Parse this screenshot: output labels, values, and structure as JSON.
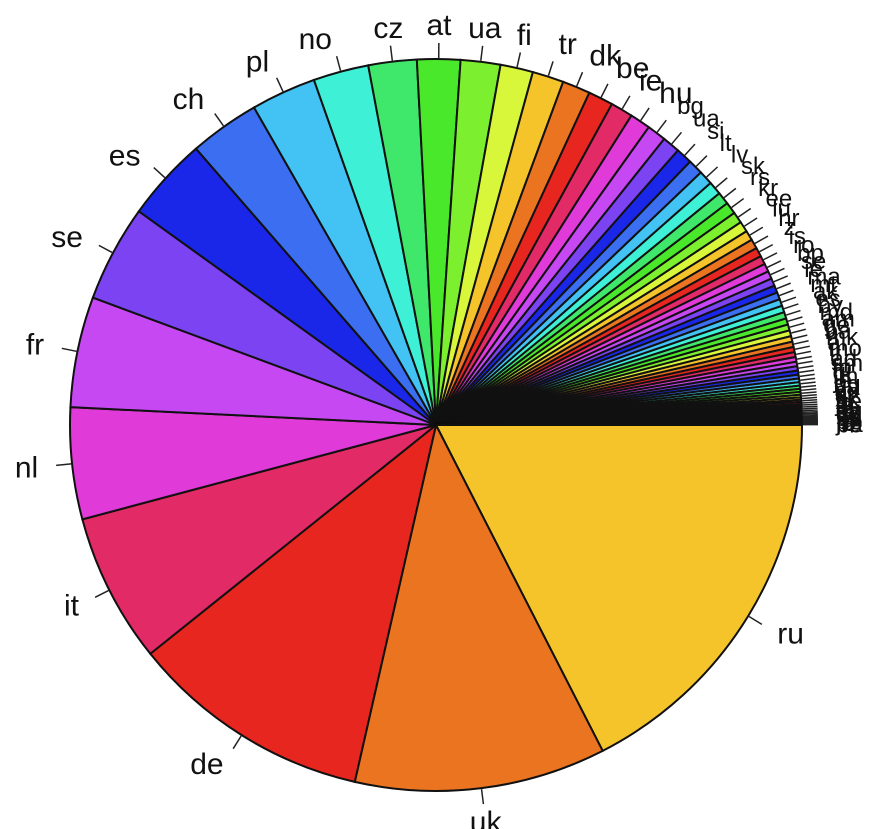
{
  "chart_data": {
    "type": "pie",
    "title": "",
    "slices": [
      {
        "label": "ru",
        "value": 18.44,
        "color": "#f4c42a"
      },
      {
        "label": "uk",
        "value": 11.7,
        "color": "#ea7420"
      },
      {
        "label": "de",
        "value": 11.28,
        "color": "#e6261f"
      },
      {
        "label": "it",
        "value": 6.96,
        "color": "#e22a67"
      },
      {
        "label": "nl",
        "value": 5.2,
        "color": "#e03ad8"
      },
      {
        "label": "fr",
        "value": 5.15,
        "color": "#c648f3"
      },
      {
        "label": "se",
        "value": 4.5,
        "color": "#7c43f2"
      },
      {
        "label": "es",
        "value": 3.9,
        "color": "#1a27e8"
      },
      {
        "label": "ch",
        "value": 3.27,
        "color": "#3b6ef0"
      },
      {
        "label": "pl",
        "value": 3.03,
        "color": "#42c3f4"
      },
      {
        "label": "no",
        "value": 2.58,
        "color": "#3ef0d5"
      },
      {
        "label": "cz",
        "value": 2.25,
        "color": "#3fe86a"
      },
      {
        "label": "at",
        "value": 2.01,
        "color": "#4ae82a"
      },
      {
        "label": "ua",
        "value": 1.85,
        "color": "#7cf02e"
      },
      {
        "label": "fi",
        "value": 1.52,
        "color": "#d9f73a"
      },
      {
        "label": "tr",
        "value": 1.46,
        "color": "#f4c42a"
      },
      {
        "label": "dk",
        "value": 1.3,
        "color": "#ea7420"
      },
      {
        "label": "be",
        "value": 1.16,
        "color": "#e6261f"
      },
      {
        "label": "ie",
        "value": 1.04,
        "color": "#e22a67"
      },
      {
        "label": "hu",
        "value": 0.96,
        "color": "#e03ad8"
      },
      {
        "label": "bg",
        "value": 0.89,
        "color": "#c648f3"
      },
      {
        "label": "ua",
        "value": 0.82,
        "color": "#7c43f2"
      },
      {
        "label": "si",
        "value": 0.76,
        "color": "#1a27e8"
      },
      {
        "label": "lt",
        "value": 0.7,
        "color": "#3b6ef0"
      },
      {
        "label": "lv",
        "value": 0.66,
        "color": "#42c3f4"
      },
      {
        "label": "sk",
        "value": 0.62,
        "color": "#3ef0d5"
      },
      {
        "label": "rs",
        "value": 0.58,
        "color": "#3fe86a"
      },
      {
        "label": "kr",
        "value": 0.55,
        "color": "#4ae82a"
      },
      {
        "label": "ee",
        "value": 0.52,
        "color": "#7cf02e"
      },
      {
        "label": "lu",
        "value": 0.49,
        "color": "#d9f73a"
      },
      {
        "label": "hr",
        "value": 0.46,
        "color": "#f4c42a"
      },
      {
        "label": "z",
        "value": 0.44,
        "color": "#ea7420"
      },
      {
        "label": "is",
        "value": 0.42,
        "color": "#e6261f"
      },
      {
        "label": "ro",
        "value": 0.4,
        "color": "#e22a67"
      },
      {
        "label": "bp",
        "value": 0.38,
        "color": "#e03ad8"
      },
      {
        "label": "se",
        "value": 0.36,
        "color": "#c648f3"
      },
      {
        "label": "ie",
        "value": 0.35,
        "color": "#7c43f2"
      },
      {
        "label": "ma",
        "value": 0.34,
        "color": "#1a27e8"
      },
      {
        "label": "mt",
        "value": 0.33,
        "color": "#3b6ef0"
      },
      {
        "label": "ak",
        "value": 0.32,
        "color": "#42c3f4"
      },
      {
        "label": "es",
        "value": 0.31,
        "color": "#3ef0d5"
      },
      {
        "label": "by",
        "value": 0.3,
        "color": "#3fe86a"
      },
      {
        "label": "md",
        "value": 0.29,
        "color": "#4ae82a"
      },
      {
        "label": "am",
        "value": 0.28,
        "color": "#7cf02e"
      },
      {
        "label": "ge",
        "value": 0.27,
        "color": "#d9f73a"
      },
      {
        "label": "ba",
        "value": 0.26,
        "color": "#f4c42a"
      },
      {
        "label": "mk",
        "value": 0.25,
        "color": "#ea7420"
      },
      {
        "label": "al",
        "value": 0.24,
        "color": "#e6261f"
      },
      {
        "label": "mo",
        "value": 0.23,
        "color": "#e22a67"
      },
      {
        "label": "li",
        "value": 0.22,
        "color": "#e03ad8"
      },
      {
        "label": "ad",
        "value": 0.21,
        "color": "#c648f3"
      },
      {
        "label": "sm",
        "value": 0.2,
        "color": "#7c43f2"
      },
      {
        "label": "fo",
        "value": 0.19,
        "color": "#1a27e8"
      },
      {
        "label": "gi",
        "value": 0.18,
        "color": "#3b6ef0"
      },
      {
        "label": "im",
        "value": 0.17,
        "color": "#42c3f4"
      },
      {
        "label": "je",
        "value": 0.16,
        "color": "#3ef0d5"
      },
      {
        "label": "gg",
        "value": 0.15,
        "color": "#3fe86a"
      },
      {
        "label": "va",
        "value": 0.14,
        "color": "#4ae82a"
      },
      {
        "label": "ax",
        "value": 0.13,
        "color": "#7cf02e"
      },
      {
        "label": "sj",
        "value": 0.12,
        "color": "#d9f73a"
      },
      {
        "label": "ct",
        "value": 0.11,
        "color": "#f4c42a"
      },
      {
        "label": "xk",
        "value": 0.1,
        "color": "#ea7420"
      },
      {
        "label": "ne",
        "value": 0.1,
        "color": "#e6261f"
      },
      {
        "label": "jo",
        "value": 0.09,
        "color": "#e22a67"
      },
      {
        "label": "le",
        "value": 0.09,
        "color": "#e03ad8"
      },
      {
        "label": "il",
        "value": 0.08,
        "color": "#c648f3"
      },
      {
        "label": "cy",
        "value": 0.08,
        "color": "#7c43f2"
      },
      {
        "label": "eg",
        "value": 0.07,
        "color": "#1a27e8"
      },
      {
        "label": "tn",
        "value": 0.07,
        "color": "#3b6ef0"
      },
      {
        "label": "dz",
        "value": 0.06,
        "color": "#42c3f4"
      },
      {
        "label": "ly",
        "value": 0.06,
        "color": "#3ef0d5"
      },
      {
        "label": "ps",
        "value": 0.05,
        "color": "#3fe86a"
      },
      {
        "label": "sy",
        "value": 0.05,
        "color": "#4ae82a"
      },
      {
        "label": "iq",
        "value": 0.05,
        "color": "#7cf02e"
      },
      {
        "label": "ir",
        "value": 0.04,
        "color": "#d9f73a"
      },
      {
        "label": "pe",
        "value": 0.04,
        "color": "#f4c42a"
      },
      {
        "label": "je",
        "value": 0.04,
        "color": "#ea7420"
      },
      {
        "label": "lb",
        "value": 0.03,
        "color": "#e6261f"
      },
      {
        "label": "ba",
        "value": 0.03,
        "color": "#e22a67"
      },
      {
        "label": "be",
        "value": 0.03,
        "color": "#e03ad8"
      }
    ]
  }
}
